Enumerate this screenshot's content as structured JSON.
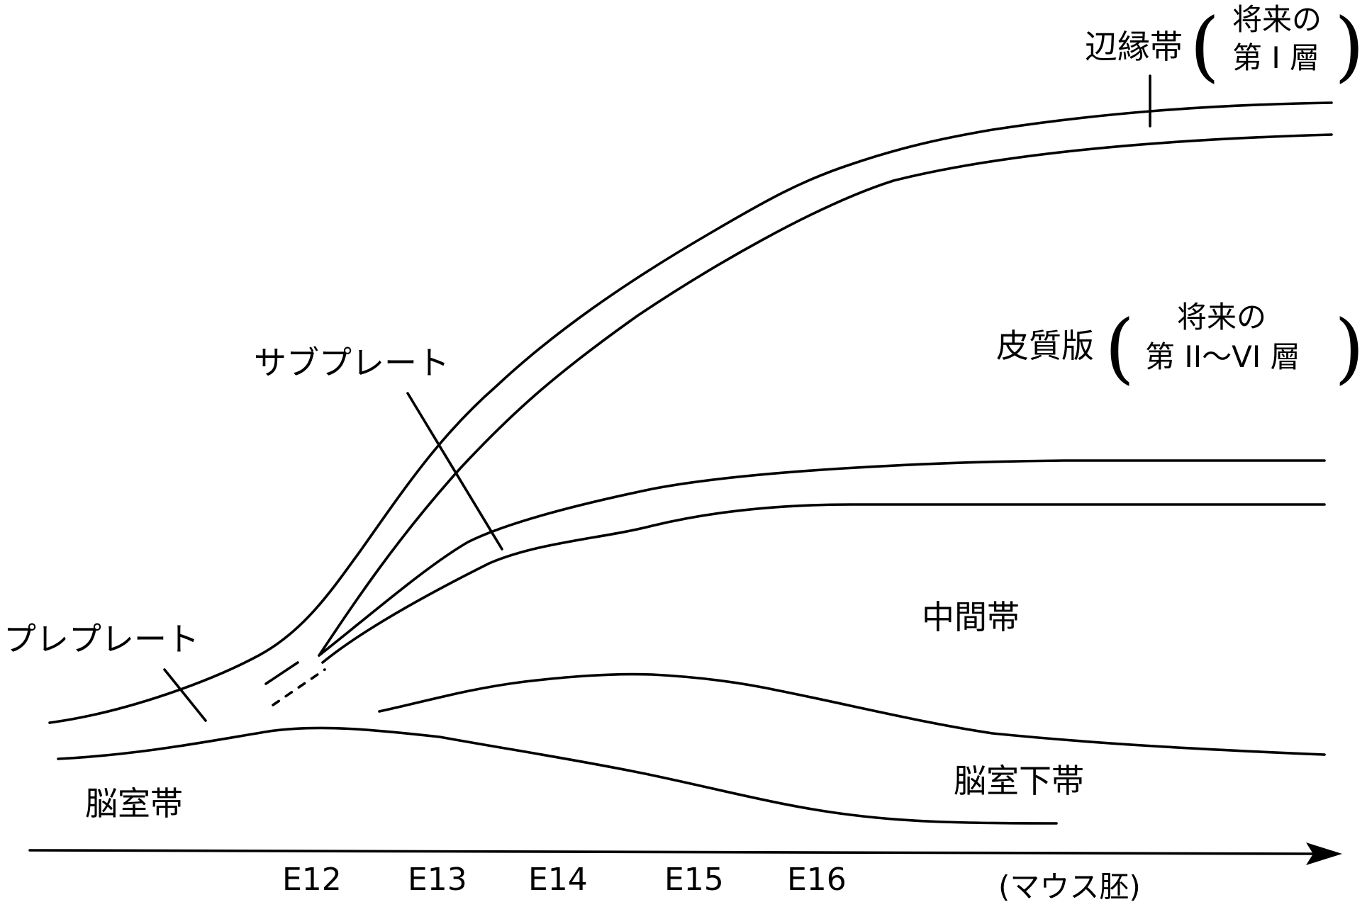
{
  "labels": {
    "marginal_zone": "辺縁帯",
    "marginal_note_line1": "将来の",
    "marginal_note_line2": "第 I 層",
    "cortical_plate": "皮質版",
    "cortical_note_line1": "将来の",
    "cortical_note_line2": "第 II〜VI 層",
    "subplate": "サブプレート",
    "preplate": "プレプレート",
    "intermediate_zone": "中間帯",
    "subventricular_zone": "脳室下帯",
    "ventricular_zone": "脳室帯",
    "paren_open": "(",
    "paren_close": ")"
  },
  "axis": {
    "ticks": [
      "E12",
      "E13",
      "E14",
      "E15",
      "E16"
    ],
    "unit_label": "(マウス胚)"
  }
}
